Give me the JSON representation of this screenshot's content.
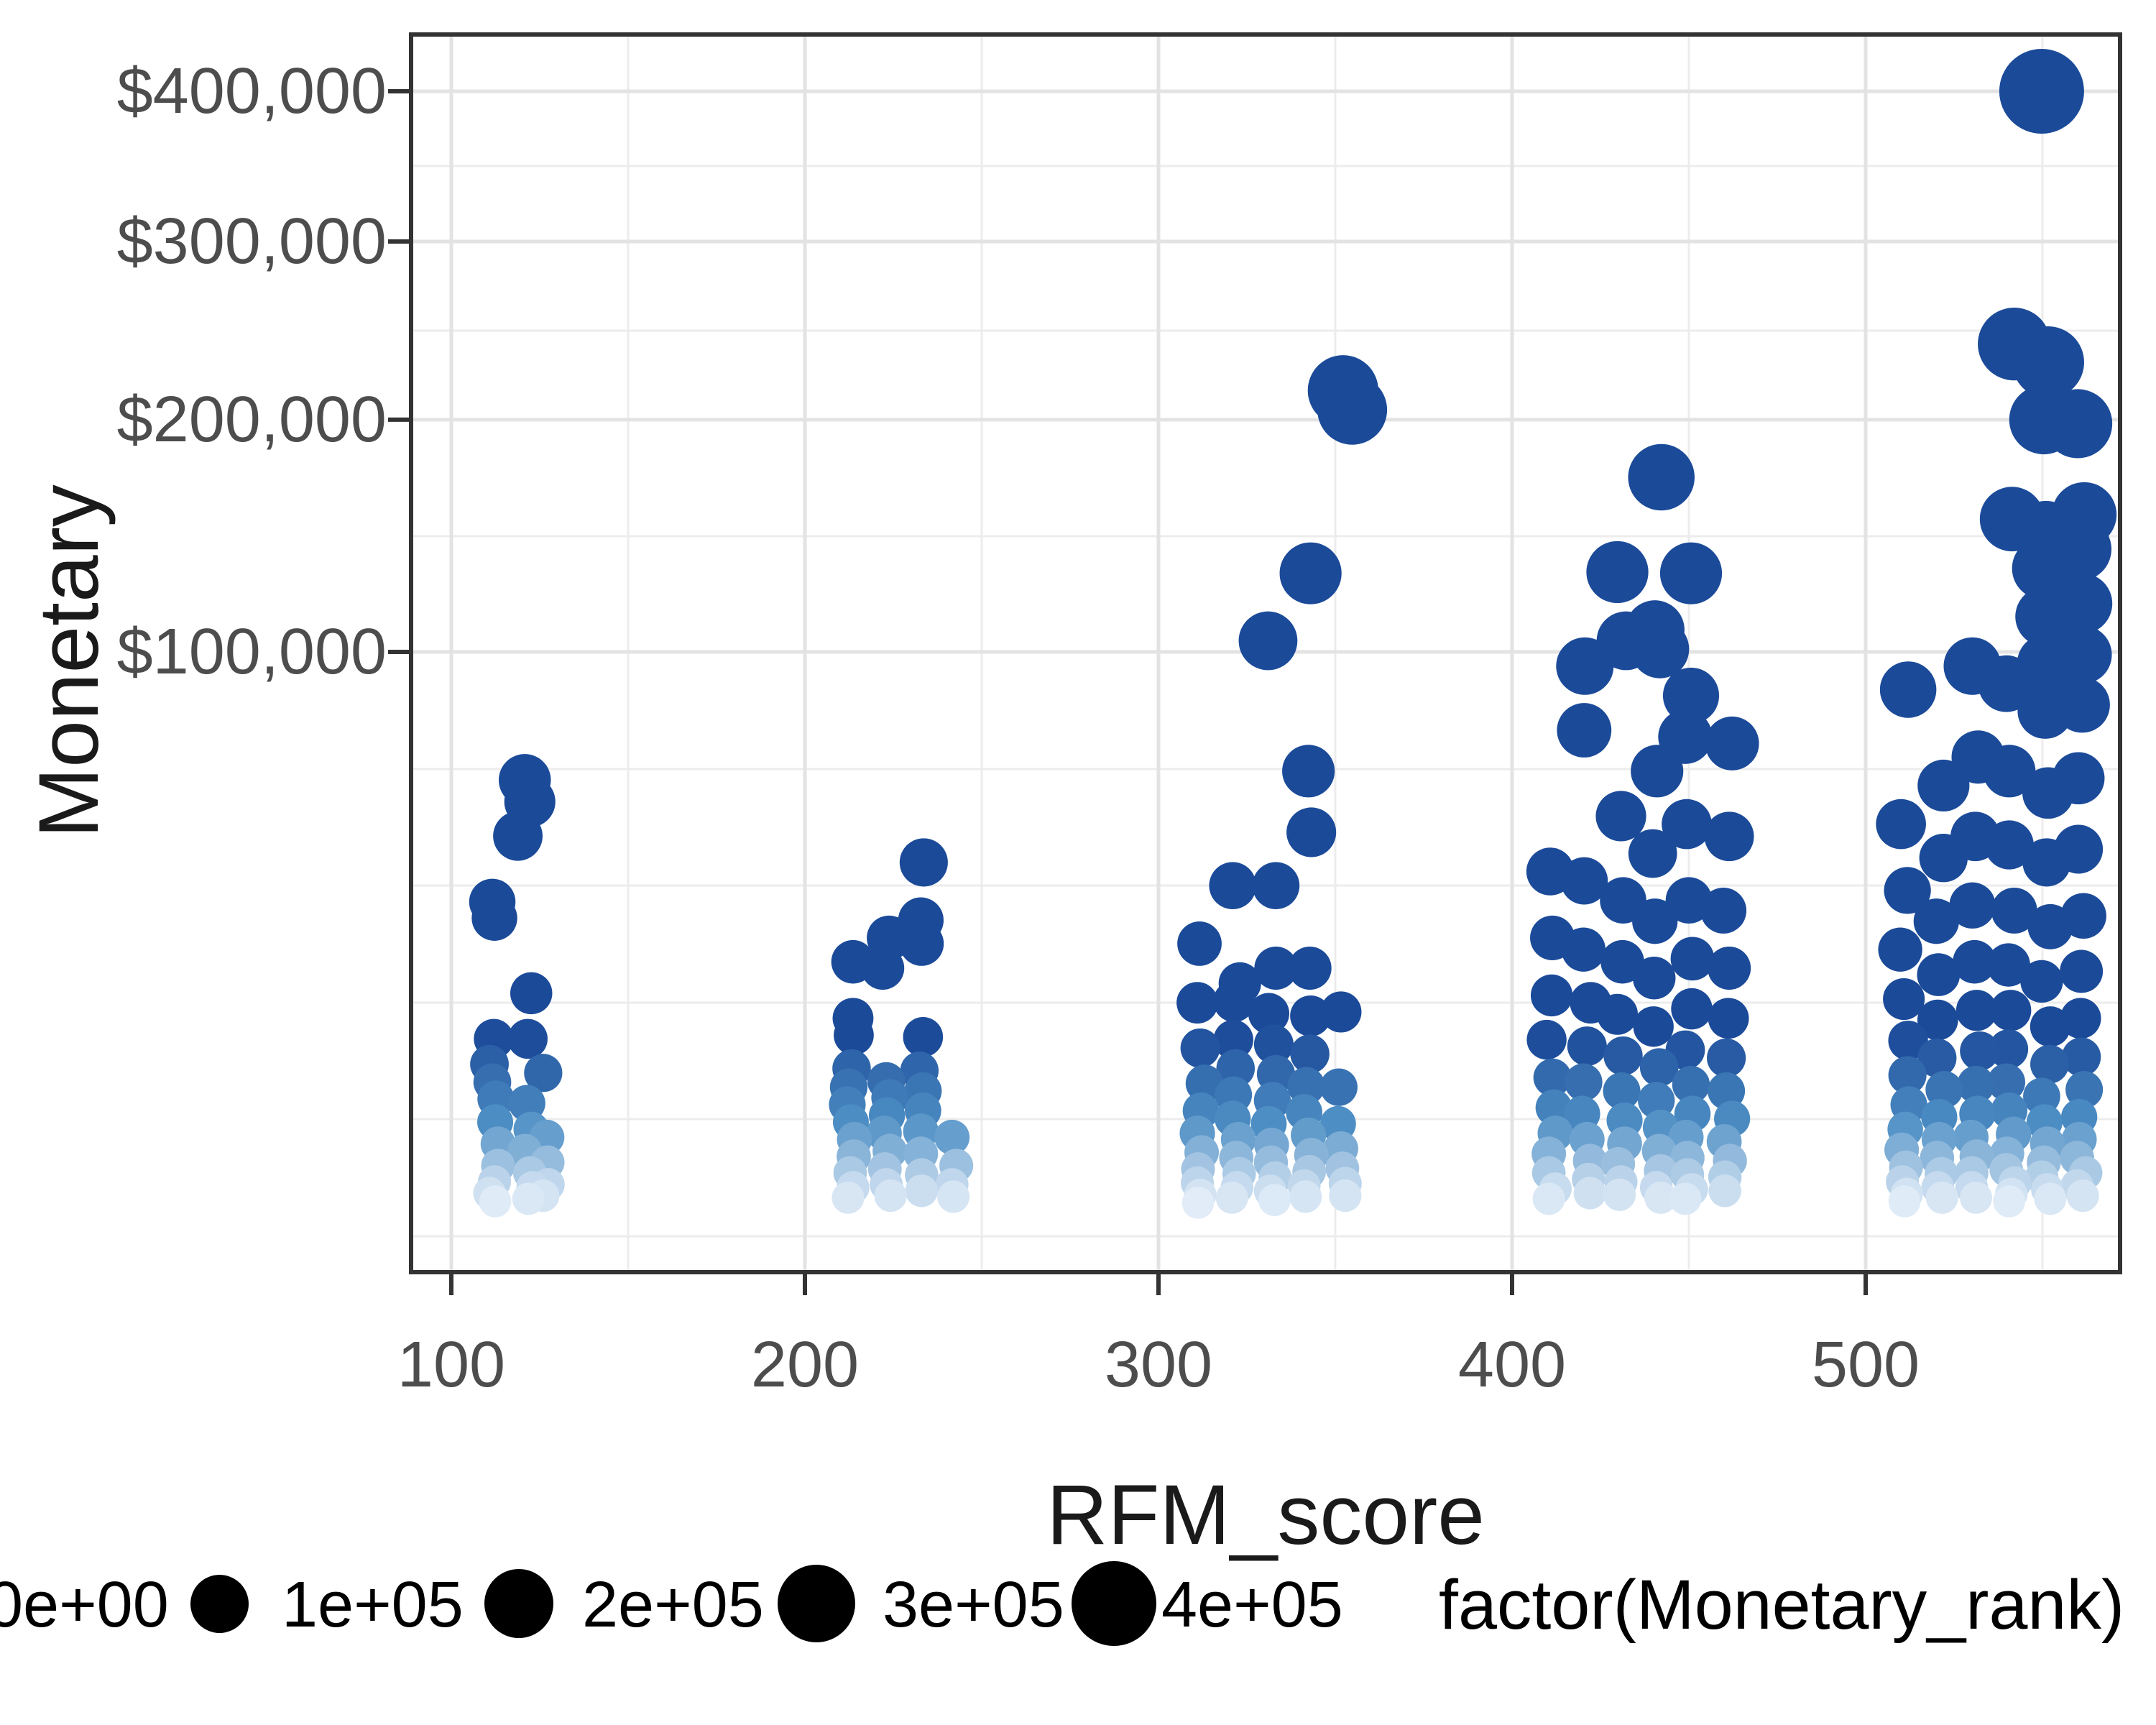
{
  "chart": {
    "x_title": "RFM_score",
    "y_title": "Monetary",
    "colors": {
      "point_high": "#1B4A99",
      "point_mid": "#4D8EC4",
      "point_low": "#F4F8FE",
      "grid_major": "#E3E3E3",
      "grid_minor": "#ECECEC",
      "panel_border": "#333333",
      "tick_mark": "#333333",
      "tick_label": "#4D4D4D",
      "title_text": "#1A1A1A",
      "legend_key": "#000000",
      "panel_bg": "#FFFFFF"
    }
  },
  "axes": {
    "x": {
      "ticks": [
        {
          "label": "100",
          "value": 100
        },
        {
          "label": "200",
          "value": 200
        },
        {
          "label": "300",
          "value": 300
        },
        {
          "label": "400",
          "value": 400
        },
        {
          "label": "500",
          "value": 500
        }
      ]
    },
    "y": {
      "ticks": [
        {
          "label": "$400,000",
          "value": 400000
        },
        {
          "label": "$300,000",
          "value": 300000
        },
        {
          "label": "$200,000",
          "value": 200000
        },
        {
          "label": "$100,000",
          "value": 100000
        }
      ]
    }
  },
  "legend": {
    "title": "factor(Monetary_rank)",
    "items": [
      {
        "label": "0e+00",
        "value": 0
      },
      {
        "label": "1e+05",
        "value": 100000
      },
      {
        "label": "2e+05",
        "value": 200000
      },
      {
        "label": "3e+05",
        "value": 300000
      },
      {
        "label": "4e+05",
        "value": 400000
      }
    ]
  },
  "chart_data": {
    "type": "scatter",
    "title": "",
    "xlabel": "RFM_score",
    "ylabel": "Monetary",
    "x_ticks": [
      100,
      200,
      300,
      400,
      500
    ],
    "y_ticks": [
      0,
      100000,
      200000,
      300000,
      400000
    ],
    "y_transform": "sqrt",
    "xlim": [
      88,
      572
    ],
    "ylim": [
      0,
      441000
    ],
    "grid": true,
    "legend_position": "bottom",
    "size_maps_to": "Monetary (0 to 4e+05)",
    "color_maps_to": "Monetary rank (light = low, dark blue = high)",
    "points": [
      [
        112,
        30700
      ],
      [
        112,
        27600
      ],
      [
        112,
        9600
      ],
      [
        112,
        7000
      ],
      [
        112,
        5400
      ],
      [
        112,
        4100
      ],
      [
        112,
        2600
      ],
      [
        112,
        1500
      ],
      [
        112,
        700
      ],
      [
        112,
        300
      ],
      [
        112,
        120
      ],
      [
        112,
        40
      ],
      [
        118,
        45100
      ],
      [
        122,
        59500
      ],
      [
        122,
        53700
      ],
      [
        122,
        15300
      ],
      [
        122,
        9600
      ],
      [
        122,
        3800
      ],
      [
        122,
        2200
      ],
      [
        122,
        1200
      ],
      [
        122,
        500
      ],
      [
        122,
        200
      ],
      [
        122,
        60
      ],
      [
        127,
        6200
      ],
      [
        127,
        1800
      ],
      [
        127,
        800
      ],
      [
        127,
        250
      ],
      [
        127,
        90
      ],
      [
        213,
        20000
      ],
      [
        213,
        12000
      ],
      [
        213,
        10000
      ],
      [
        213,
        6600
      ],
      [
        213,
        5000
      ],
      [
        213,
        3700
      ],
      [
        213,
        2600
      ],
      [
        213,
        1700
      ],
      [
        213,
        1000
      ],
      [
        213,
        500
      ],
      [
        213,
        200
      ],
      [
        213,
        70
      ],
      [
        223,
        24000
      ],
      [
        223,
        19000
      ],
      [
        223,
        5500
      ],
      [
        223,
        4200
      ],
      [
        223,
        3000
      ],
      [
        223,
        2000
      ],
      [
        223,
        1200
      ],
      [
        223,
        600
      ],
      [
        223,
        250
      ],
      [
        223,
        90
      ],
      [
        233,
        39000
      ],
      [
        233,
        27200
      ],
      [
        233,
        23000
      ],
      [
        233,
        9800
      ],
      [
        233,
        6400
      ],
      [
        233,
        4700
      ],
      [
        233,
        3300
      ],
      [
        233,
        2100
      ],
      [
        233,
        1100
      ],
      [
        233,
        450
      ],
      [
        233,
        150
      ],
      [
        242,
        1800
      ],
      [
        242,
        700
      ],
      [
        242,
        250
      ],
      [
        242,
        80
      ],
      [
        312,
        23000
      ],
      [
        312,
        14000
      ],
      [
        312,
        8600
      ],
      [
        312,
        5300
      ],
      [
        312,
        3300
      ],
      [
        312,
        2000
      ],
      [
        312,
        1150
      ],
      [
        312,
        600
      ],
      [
        312,
        280
      ],
      [
        312,
        100
      ],
      [
        312,
        30
      ],
      [
        322,
        34000
      ],
      [
        322,
        16700
      ],
      [
        322,
        14200
      ],
      [
        322,
        9500
      ],
      [
        322,
        6600
      ],
      [
        322,
        4400
      ],
      [
        322,
        2800
      ],
      [
        322,
        1700
      ],
      [
        322,
        950
      ],
      [
        322,
        480
      ],
      [
        322,
        200
      ],
      [
        322,
        70
      ],
      [
        332,
        104000
      ],
      [
        332,
        34000
      ],
      [
        332,
        19000
      ],
      [
        332,
        12600
      ],
      [
        332,
        9000
      ],
      [
        332,
        6100
      ],
      [
        332,
        4000
      ],
      [
        332,
        2500
      ],
      [
        332,
        1450
      ],
      [
        332,
        800
      ],
      [
        332,
        380
      ],
      [
        332,
        150
      ],
      [
        332,
        50
      ],
      [
        342,
        130000
      ],
      [
        342,
        62000
      ],
      [
        342,
        46000
      ],
      [
        342,
        19000
      ],
      [
        342,
        12300
      ],
      [
        342,
        8000
      ],
      [
        342,
        5100
      ],
      [
        342,
        3200
      ],
      [
        342,
        1900
      ],
      [
        342,
        1050
      ],
      [
        342,
        530
      ],
      [
        342,
        230
      ],
      [
        342,
        80
      ],
      [
        352,
        215000
      ],
      [
        355,
        205000
      ],
      [
        352,
        12800
      ],
      [
        352,
        5000
      ],
      [
        352,
        2500
      ],
      [
        352,
        1300
      ],
      [
        352,
        620
      ],
      [
        352,
        270
      ],
      [
        352,
        90
      ],
      [
        411,
        37000
      ],
      [
        411,
        24000
      ],
      [
        411,
        15000
      ],
      [
        411,
        9500
      ],
      [
        411,
        5800
      ],
      [
        411,
        3500
      ],
      [
        411,
        2000
      ],
      [
        411,
        1100
      ],
      [
        411,
        500
      ],
      [
        411,
        180
      ],
      [
        411,
        60
      ],
      [
        421,
        95000
      ],
      [
        421,
        74000
      ],
      [
        421,
        35000
      ],
      [
        421,
        22000
      ],
      [
        421,
        14000
      ],
      [
        421,
        8800
      ],
      [
        421,
        5400
      ],
      [
        421,
        3100
      ],
      [
        421,
        1700
      ],
      [
        421,
        850
      ],
      [
        421,
        350
      ],
      [
        421,
        120
      ],
      [
        431,
        130500
      ],
      [
        431,
        104000
      ],
      [
        431,
        50000
      ],
      [
        431,
        31000
      ],
      [
        431,
        20000
      ],
      [
        431,
        12500
      ],
      [
        431,
        7800
      ],
      [
        431,
        4700
      ],
      [
        431,
        2700
      ],
      [
        431,
        1500
      ],
      [
        431,
        750
      ],
      [
        431,
        300
      ],
      [
        431,
        100
      ],
      [
        441,
        172000
      ],
      [
        441,
        108000
      ],
      [
        441,
        101000
      ],
      [
        441,
        62000
      ],
      [
        441,
        41000
      ],
      [
        441,
        27000
      ],
      [
        441,
        17500
      ],
      [
        441,
        11000
      ],
      [
        441,
        6700
      ],
      [
        441,
        4000
      ],
      [
        441,
        2300
      ],
      [
        441,
        1200
      ],
      [
        441,
        550
      ],
      [
        441,
        200
      ],
      [
        441,
        70
      ],
      [
        450,
        130000
      ],
      [
        450,
        85000
      ],
      [
        450,
        72000
      ],
      [
        450,
        48000
      ],
      [
        450,
        31000
      ],
      [
        450,
        20500
      ],
      [
        450,
        13200
      ],
      [
        450,
        8400
      ],
      [
        450,
        5200
      ],
      [
        450,
        3100
      ],
      [
        450,
        1800
      ],
      [
        450,
        950
      ],
      [
        450,
        450
      ],
      [
        450,
        170
      ],
      [
        450,
        60
      ],
      [
        461,
        70000
      ],
      [
        461,
        45000
      ],
      [
        461,
        29000
      ],
      [
        461,
        19000
      ],
      [
        461,
        12000
      ],
      [
        461,
        7600
      ],
      [
        461,
        4700
      ],
      [
        461,
        2800
      ],
      [
        461,
        1600
      ],
      [
        461,
        850
      ],
      [
        461,
        400
      ],
      [
        461,
        150
      ],
      [
        511,
        87000
      ],
      [
        511,
        48000
      ],
      [
        511,
        33000
      ],
      [
        511,
        22000
      ],
      [
        511,
        14500
      ],
      [
        511,
        9400
      ],
      [
        511,
        6000
      ],
      [
        511,
        3700
      ],
      [
        511,
        2200
      ],
      [
        511,
        1250
      ],
      [
        511,
        650
      ],
      [
        511,
        300
      ],
      [
        511,
        110
      ],
      [
        511,
        40
      ],
      [
        521,
        58000
      ],
      [
        521,
        40000
      ],
      [
        521,
        27000
      ],
      [
        521,
        18000
      ],
      [
        521,
        11800
      ],
      [
        521,
        7600
      ],
      [
        521,
        4800
      ],
      [
        521,
        2900
      ],
      [
        521,
        1700
      ],
      [
        521,
        950
      ],
      [
        521,
        480
      ],
      [
        521,
        200
      ],
      [
        521,
        70
      ],
      [
        531,
        95000
      ],
      [
        531,
        66000
      ],
      [
        531,
        45000
      ],
      [
        531,
        30000
      ],
      [
        531,
        20000
      ],
      [
        531,
        13000
      ],
      [
        531,
        8300
      ],
      [
        531,
        5200
      ],
      [
        531,
        3100
      ],
      [
        531,
        1800
      ],
      [
        531,
        1000
      ],
      [
        531,
        500
      ],
      [
        531,
        200
      ],
      [
        531,
        70
      ],
      [
        541,
        240000
      ],
      [
        541,
        153000
      ],
      [
        541,
        89000
      ],
      [
        541,
        62000
      ],
      [
        541,
        43000
      ],
      [
        541,
        29000
      ],
      [
        541,
        19500
      ],
      [
        541,
        13000
      ],
      [
        541,
        8500
      ],
      [
        541,
        5400
      ],
      [
        541,
        3300
      ],
      [
        541,
        1950
      ],
      [
        541,
        1100
      ],
      [
        541,
        580
      ],
      [
        541,
        280
      ],
      [
        541,
        110
      ],
      [
        541,
        40
      ],
      [
        551,
        400000
      ],
      [
        551,
        230000
      ],
      [
        551,
        200000
      ],
      [
        551,
        147000
      ],
      [
        551,
        132000
      ],
      [
        551,
        113000
      ],
      [
        551,
        96000
      ],
      [
        551,
        80000
      ],
      [
        551,
        56000
      ],
      [
        551,
        39000
      ],
      [
        551,
        26000
      ],
      [
        551,
        17000
      ],
      [
        551,
        11000
      ],
      [
        551,
        7000
      ],
      [
        551,
        4300
      ],
      [
        551,
        2600
      ],
      [
        551,
        1500
      ],
      [
        551,
        800
      ],
      [
        551,
        400
      ],
      [
        551,
        170
      ],
      [
        551,
        60
      ],
      [
        561,
        198000
      ],
      [
        561,
        155000
      ],
      [
        561,
        140000
      ],
      [
        561,
        118000
      ],
      [
        561,
        99000
      ],
      [
        561,
        82000
      ],
      [
        561,
        60000
      ],
      [
        561,
        42000
      ],
      [
        561,
        28000
      ],
      [
        561,
        18500
      ],
      [
        561,
        12000
      ],
      [
        561,
        7700
      ],
      [
        561,
        4800
      ],
      [
        561,
        2900
      ],
      [
        561,
        1700
      ],
      [
        561,
        950
      ],
      [
        561,
        500
      ],
      [
        561,
        230
      ],
      [
        561,
        90
      ]
    ]
  }
}
